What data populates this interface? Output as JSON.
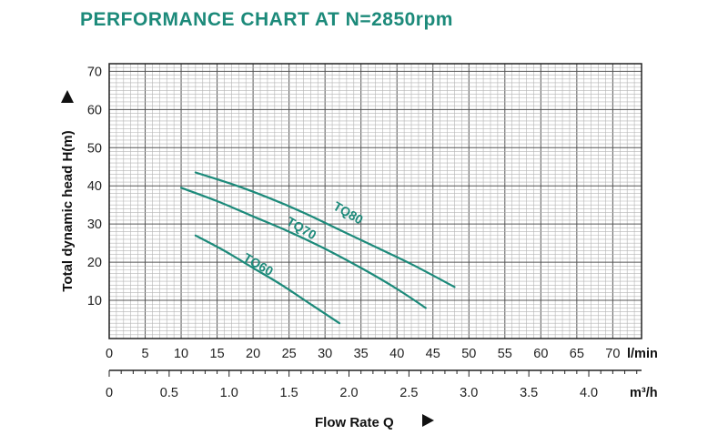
{
  "title": "PERFORMANCE CHART AT N=2850rpm",
  "colors": {
    "title": "#1c8a7a",
    "curve": "#1c8a7a",
    "grid_minor": "#b4b4b4",
    "grid_major": "#555555"
  },
  "chart_data": {
    "type": "line",
    "title": "PERFORMANCE CHART AT N=2850rpm",
    "xlabel": "Flow Rate Q",
    "ylabel": "Total dynamic head H(m)",
    "x_unit": "l/min",
    "x2_unit": "m³/h",
    "xlim": [
      0,
      74
    ],
    "ylim": [
      0,
      72
    ],
    "x_ticks": [
      "0",
      "5",
      "10",
      "15",
      "20",
      "25",
      "30",
      "35",
      "40",
      "45",
      "50",
      "55",
      "60",
      "65",
      "70"
    ],
    "x2_ticks": [
      "0",
      "0.5",
      "1.0",
      "1.5",
      "2.0",
      "2.5",
      "3.0",
      "3.5",
      "4.0"
    ],
    "y_ticks": [
      "10",
      "20",
      "30",
      "40",
      "50",
      "60",
      "70"
    ],
    "grid": true,
    "series": [
      {
        "name": "TQ60",
        "x": [
          12,
          16,
          20,
          24,
          28,
          32
        ],
        "y": [
          27,
          23,
          18.5,
          14,
          9,
          4
        ]
      },
      {
        "name": "TQ70",
        "x": [
          10,
          15,
          20,
          25,
          30,
          35,
          40,
          44
        ],
        "y": [
          39.5,
          36,
          32,
          28,
          23.5,
          18.5,
          13,
          8
        ]
      },
      {
        "name": "TQ80",
        "x": [
          12,
          17,
          22,
          27,
          32,
          37,
          42,
          48
        ],
        "y": [
          43.5,
          40.5,
          37,
          33,
          28.5,
          24,
          19.5,
          13.5
        ]
      }
    ]
  }
}
